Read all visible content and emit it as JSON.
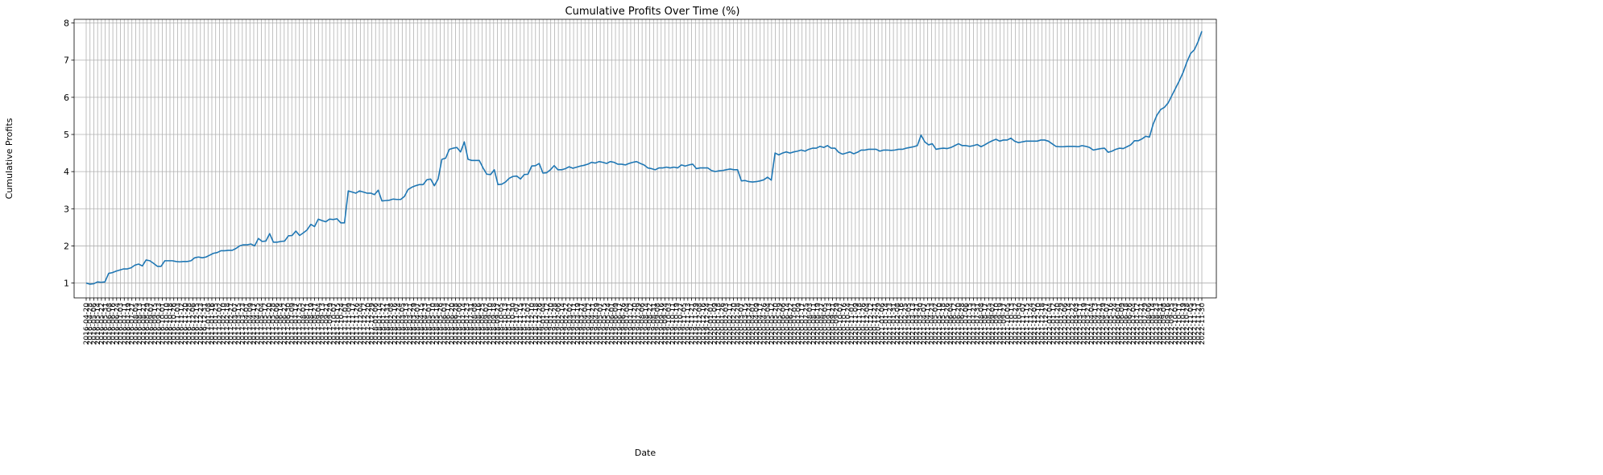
{
  "chart_data": {
    "type": "line",
    "title": "Cumulative Profits Over Time (%)",
    "xlabel": "Date",
    "ylabel": "Cumulative Profits",
    "ylim": [
      0.6,
      8.1
    ],
    "yticks": [
      1,
      2,
      3,
      4,
      5,
      6,
      7,
      8
    ],
    "grid": true,
    "x_start": "2016-04-20",
    "x_end": "2022-11-30",
    "x_tick_count": 294,
    "series": [
      {
        "color": "#1f77b4",
        "values": [
          1.0,
          0.97,
          0.98,
          1.03,
          1.02,
          1.03,
          1.26,
          1.28,
          1.32,
          1.35,
          1.38,
          1.38,
          1.41,
          1.48,
          1.51,
          1.46,
          1.62,
          1.6,
          1.53,
          1.45,
          1.45,
          1.6,
          1.6,
          1.6,
          1.58,
          1.57,
          1.58,
          1.58,
          1.6,
          1.68,
          1.7,
          1.68,
          1.7,
          1.75,
          1.8,
          1.82,
          1.87,
          1.87,
          1.88,
          1.88,
          1.93,
          2.0,
          2.03,
          2.03,
          2.05,
          2.0,
          2.2,
          2.12,
          2.13,
          2.33,
          2.1,
          2.1,
          2.12,
          2.13,
          2.27,
          2.28,
          2.4,
          2.28,
          2.35,
          2.43,
          2.58,
          2.52,
          2.72,
          2.68,
          2.65,
          2.72,
          2.71,
          2.73,
          2.62,
          2.62,
          3.48,
          3.45,
          3.42,
          3.48,
          3.45,
          3.42,
          3.42,
          3.38,
          3.5,
          3.21,
          3.22,
          3.23,
          3.26,
          3.25,
          3.25,
          3.33,
          3.52,
          3.58,
          3.62,
          3.65,
          3.65,
          3.78,
          3.8,
          3.62,
          3.8,
          4.33,
          4.36,
          4.6,
          4.63,
          4.65,
          4.53,
          4.8,
          4.33,
          4.3,
          4.3,
          4.3,
          4.1,
          3.93,
          3.92,
          4.05,
          3.65,
          3.66,
          3.72,
          3.82,
          3.87,
          3.88,
          3.8,
          3.92,
          3.93,
          4.15,
          4.16,
          4.22,
          3.96,
          3.97,
          4.05,
          4.16,
          4.05,
          4.05,
          4.08,
          4.13,
          4.09,
          4.12,
          4.15,
          4.17,
          4.2,
          4.25,
          4.23,
          4.27,
          4.25,
          4.22,
          4.27,
          4.25,
          4.2,
          4.2,
          4.18,
          4.22,
          4.25,
          4.27,
          4.22,
          4.18,
          4.1,
          4.08,
          4.05,
          4.1,
          4.1,
          4.12,
          4.1,
          4.12,
          4.1,
          4.18,
          4.15,
          4.18,
          4.2,
          4.08,
          4.1,
          4.1,
          4.1,
          4.03,
          4.0,
          4.02,
          4.03,
          4.05,
          4.07,
          4.05,
          4.05,
          3.75,
          3.76,
          3.73,
          3.72,
          3.73,
          3.75,
          3.78,
          3.85,
          3.77,
          4.5,
          4.45,
          4.5,
          4.53,
          4.5,
          4.53,
          4.55,
          4.58,
          4.55,
          4.6,
          4.63,
          4.63,
          4.68,
          4.65,
          4.7,
          4.63,
          4.63,
          4.52,
          4.47,
          4.5,
          4.53,
          4.48,
          4.52,
          4.58,
          4.58,
          4.6,
          4.6,
          4.6,
          4.55,
          4.58,
          4.58,
          4.57,
          4.58,
          4.6,
          4.6,
          4.63,
          4.65,
          4.67,
          4.7,
          4.98,
          4.8,
          4.72,
          4.75,
          4.6,
          4.62,
          4.63,
          4.62,
          4.65,
          4.7,
          4.75,
          4.7,
          4.7,
          4.68,
          4.7,
          4.73,
          4.67,
          4.72,
          4.78,
          4.83,
          4.87,
          4.82,
          4.85,
          4.85,
          4.9,
          4.82,
          4.78,
          4.8,
          4.82,
          4.82,
          4.82,
          4.82,
          4.85,
          4.85,
          4.82,
          4.75,
          4.68,
          4.67,
          4.67,
          4.68,
          4.68,
          4.68,
          4.67,
          4.7,
          4.68,
          4.65,
          4.58,
          4.6,
          4.62,
          4.63,
          4.52,
          4.55,
          4.6,
          4.63,
          4.62,
          4.67,
          4.72,
          4.83,
          4.83,
          4.88,
          4.95,
          4.93,
          5.28,
          5.52,
          5.67,
          5.73,
          5.85,
          6.05,
          6.25,
          6.45,
          6.67,
          6.95,
          7.18,
          7.28,
          7.5,
          7.78
        ]
      }
    ]
  }
}
